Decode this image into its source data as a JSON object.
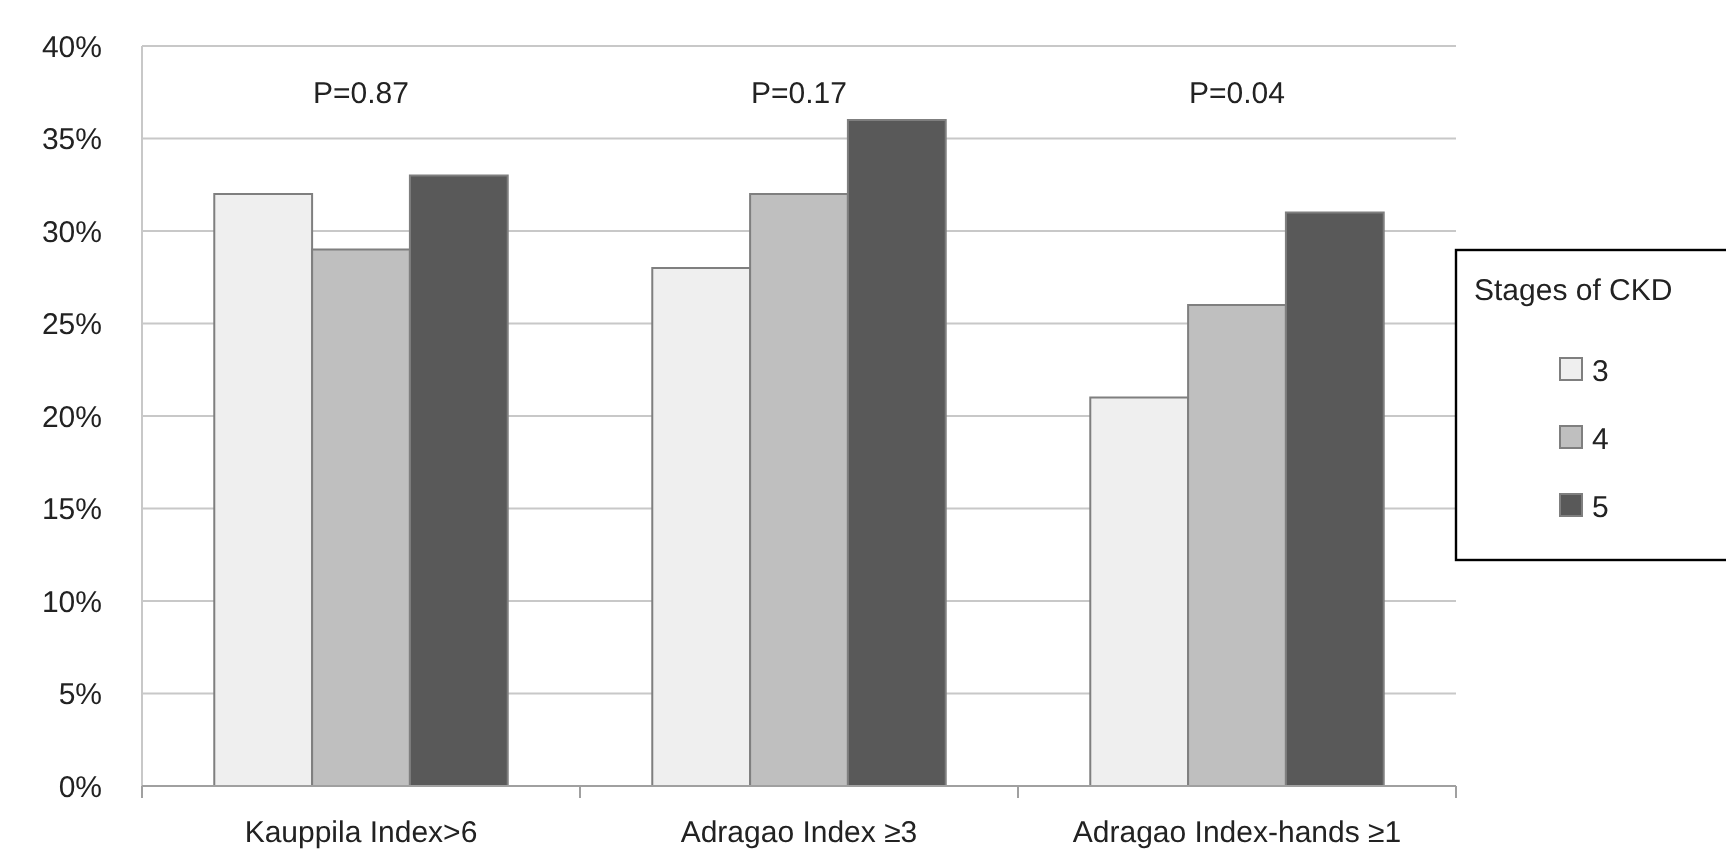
{
  "chart_data": {
    "type": "bar",
    "categories": [
      "Kauppila Index>6",
      "Adragao Index ≥3",
      "Adragao Index-hands ≥1"
    ],
    "series": [
      {
        "name": "3",
        "color": "#efefef",
        "values": [
          32,
          28,
          21
        ]
      },
      {
        "name": "4",
        "color": "#bfbfbf",
        "values": [
          29,
          32,
          26
        ]
      },
      {
        "name": "5",
        "color": "#595959",
        "values": [
          33,
          36,
          31
        ]
      }
    ],
    "ylim": [
      0,
      40
    ],
    "yticks": [
      {
        "value": 0,
        "label": "0%"
      },
      {
        "value": 5,
        "label": "5%"
      },
      {
        "value": 10,
        "label": "10%"
      },
      {
        "value": 15,
        "label": "15%"
      },
      {
        "value": 20,
        "label": "20%"
      },
      {
        "value": 25,
        "label": "25%"
      },
      {
        "value": 30,
        "label": "30%"
      },
      {
        "value": 35,
        "label": "35%"
      },
      {
        "value": 40,
        "label": "40%"
      }
    ],
    "grid": "y",
    "legend": "right",
    "legend_title": "Stages of CKD",
    "annotations": [
      "P=0.87",
      "P=0.17",
      "P=0.04"
    ]
  }
}
